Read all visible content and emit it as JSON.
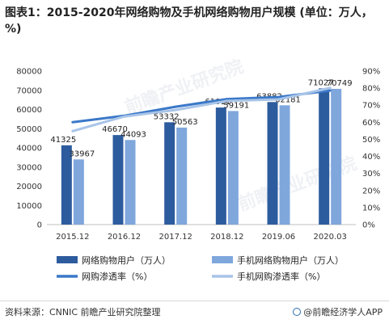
{
  "title": "图表1：2015-2020年网络购物及手机网络购物用户规模 (单位：万人，%)",
  "source": "资料来源：CNNIC 前瞻产业研究院整理",
  "brand": "@前瞻经济学人APP",
  "watermark": "前瞻产业研究院",
  "colors": {
    "bar_primary": "#2d5c9e",
    "bar_secondary": "#7fa7dc",
    "line_primary": "#3a78c8",
    "line_secondary": "#a8c4e8",
    "axis_text": "#333333"
  },
  "chart_data": {
    "type": "bar",
    "categories": [
      "2015.12",
      "2016.12",
      "2017.12",
      "2018.12",
      "2019.06",
      "2020.03"
    ],
    "ylim_left": [
      0,
      80000
    ],
    "yticks_left": [
      "0",
      "10000",
      "20000",
      "30000",
      "40000",
      "50000",
      "60000",
      "70000",
      "80000"
    ],
    "ylim_right": [
      0,
      90
    ],
    "yticks_right": [
      "0%",
      "10%",
      "20%",
      "30%",
      "40%",
      "50%",
      "60%",
      "70%",
      "80%",
      "90%"
    ],
    "series": [
      {
        "name": "网络购物用户（万人）",
        "axis": "left",
        "kind": "bar",
        "values": [
          41325,
          46670,
          53332,
          61011,
          63882,
          71027
        ]
      },
      {
        "name": "手机网络购物用户（万人）",
        "axis": "left",
        "kind": "bar",
        "values": [
          33967,
          44093,
          50563,
          59191,
          62181,
          70749
        ]
      },
      {
        "name": "网购渗透率（%）",
        "axis": "right",
        "kind": "line",
        "values": [
          60.0,
          63.8,
          69.1,
          73.6,
          74.8,
          78.6
        ]
      },
      {
        "name": "手机网购渗透率（%）",
        "axis": "right",
        "kind": "line",
        "values": [
          54.8,
          63.4,
          67.2,
          72.5,
          73.4,
          80.1
        ]
      }
    ],
    "legend_position": "bottom",
    "grid": false
  }
}
